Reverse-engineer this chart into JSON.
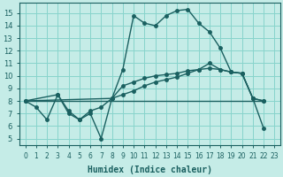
{
  "xlabel": "Humidex (Indice chaleur)",
  "bg_color": "#c5ece7",
  "grid_color": "#88d4cc",
  "line_color": "#1a6060",
  "xlim": [
    -0.5,
    23.5
  ],
  "ylim": [
    4.5,
    15.8
  ],
  "xticks": [
    0,
    1,
    2,
    3,
    4,
    5,
    6,
    7,
    8,
    9,
    10,
    11,
    12,
    13,
    14,
    15,
    16,
    17,
    18,
    19,
    20,
    21,
    22,
    23
  ],
  "yticks": [
    5,
    6,
    7,
    8,
    9,
    10,
    11,
    12,
    13,
    14,
    15
  ],
  "line1_x": [
    0,
    1,
    2,
    3,
    4,
    5,
    6,
    7,
    8,
    9,
    10,
    11,
    12,
    13,
    14,
    15,
    16,
    17,
    18,
    19,
    20,
    21,
    22
  ],
  "line1_y": [
    8.0,
    7.5,
    6.5,
    8.5,
    7.0,
    6.5,
    7.0,
    5.0,
    8.2,
    10.5,
    14.8,
    14.2,
    14.0,
    14.8,
    15.2,
    15.3,
    14.2,
    13.5,
    12.2,
    10.3,
    10.2,
    8.2,
    5.8
  ],
  "line2_x": [
    0,
    1,
    2,
    3,
    4,
    5,
    6,
    7,
    8,
    9,
    10,
    11,
    12,
    13,
    14,
    15,
    16,
    17,
    18,
    19,
    20,
    21,
    22
  ],
  "line2_y": [
    8.0,
    8.0,
    8.0,
    8.0,
    8.0,
    8.0,
    8.0,
    8.0,
    8.0,
    8.0,
    8.0,
    8.0,
    8.0,
    8.0,
    8.0,
    8.0,
    8.0,
    8.0,
    8.0,
    8.0,
    8.0,
    8.0,
    8.0
  ],
  "line3_x": [
    0,
    3,
    4,
    5,
    6,
    7,
    8,
    9,
    10,
    11,
    12,
    13,
    14,
    15,
    16,
    17,
    18,
    19,
    20,
    21,
    22
  ],
  "line3_y": [
    8.0,
    8.5,
    7.2,
    6.5,
    7.2,
    7.5,
    8.2,
    9.2,
    9.5,
    9.8,
    10.0,
    10.1,
    10.2,
    10.4,
    10.5,
    10.6,
    10.5,
    10.3,
    10.2,
    8.2,
    8.0
  ],
  "line4_x": [
    0,
    8,
    9,
    10,
    11,
    12,
    13,
    14,
    15,
    16,
    17,
    18,
    19,
    20,
    21,
    22
  ],
  "line4_y": [
    8.0,
    8.2,
    8.5,
    8.8,
    9.2,
    9.5,
    9.7,
    9.9,
    10.2,
    10.5,
    11.0,
    10.5,
    10.3,
    10.2,
    8.2,
    8.0
  ],
  "markersize": 2.5,
  "linewidth": 1.0
}
